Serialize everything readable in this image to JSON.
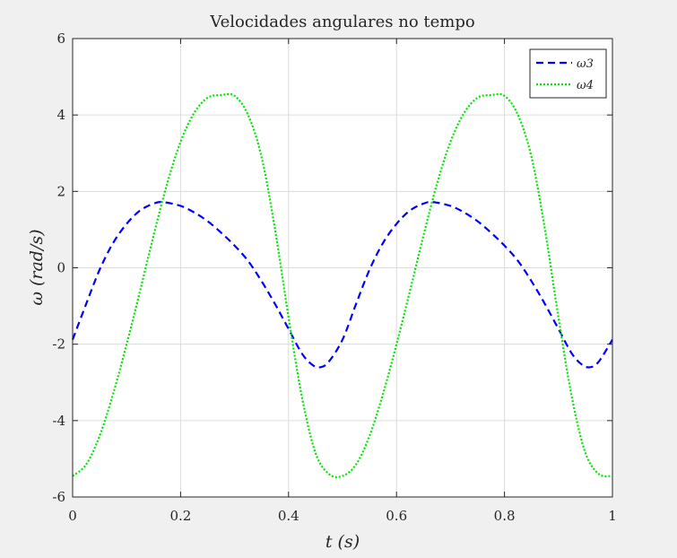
{
  "chart_data": {
    "type": "line",
    "title": "Velocidades angulares no tempo",
    "xlabel": "t (s)",
    "ylabel": "ω (rad/s)",
    "xlim": [
      0,
      1
    ],
    "ylim": [
      -6,
      6
    ],
    "xticks": [
      0,
      0.2,
      0.4,
      0.6,
      0.8,
      1
    ],
    "xtick_labels": [
      "0",
      "0.2",
      "0.4",
      "0.6",
      "0.8",
      "1"
    ],
    "yticks": [
      -6,
      -4,
      -2,
      0,
      2,
      4,
      6
    ],
    "ytick_labels": [
      "-6",
      "-4",
      "-2",
      "0",
      "2",
      "4",
      "6"
    ],
    "grid": true,
    "legend_position": "top-right",
    "series": [
      {
        "name": "ω3",
        "color": "#0000ff",
        "style": "dashed",
        "x": [
          0,
          0.025,
          0.05,
          0.075,
          0.1,
          0.125,
          0.15,
          0.167,
          0.2,
          0.225,
          0.25,
          0.275,
          0.3,
          0.325,
          0.35,
          0.375,
          0.4,
          0.425,
          0.445,
          0.46,
          0.475,
          0.5,
          0.525,
          0.55,
          0.575,
          0.6,
          0.625,
          0.65,
          0.667,
          0.7,
          0.725,
          0.75,
          0.775,
          0.8,
          0.825,
          0.85,
          0.875,
          0.9,
          0.925,
          0.945,
          0.96,
          0.975,
          1
        ],
        "y": [
          -1.88,
          -0.95,
          -0.05,
          0.65,
          1.15,
          1.5,
          1.68,
          1.72,
          1.62,
          1.45,
          1.22,
          0.92,
          0.58,
          0.18,
          -0.35,
          -0.95,
          -1.6,
          -2.25,
          -2.55,
          -2.6,
          -2.45,
          -1.88,
          -0.95,
          -0.05,
          0.65,
          1.15,
          1.5,
          1.68,
          1.72,
          1.62,
          1.45,
          1.22,
          0.92,
          0.58,
          0.18,
          -0.35,
          -0.95,
          -1.6,
          -2.25,
          -2.55,
          -2.6,
          -2.45,
          -1.88
        ]
      },
      {
        "name": "ω4",
        "color": "#00e600",
        "style": "dotted",
        "x": [
          0,
          0.025,
          0.05,
          0.075,
          0.1,
          0.125,
          0.15,
          0.175,
          0.2,
          0.225,
          0.25,
          0.275,
          0.3,
          0.325,
          0.35,
          0.375,
          0.4,
          0.425,
          0.45,
          0.475,
          0.5,
          0.525,
          0.55,
          0.575,
          0.6,
          0.625,
          0.65,
          0.675,
          0.7,
          0.725,
          0.75,
          0.775,
          0.8,
          0.825,
          0.85,
          0.875,
          0.9,
          0.925,
          0.95,
          0.975,
          1
        ],
        "y": [
          -5.45,
          -5.15,
          -4.4,
          -3.3,
          -2.0,
          -0.6,
          0.85,
          2.2,
          3.3,
          4.05,
          4.45,
          4.52,
          4.5,
          4.0,
          2.9,
          1.0,
          -1.3,
          -3.4,
          -4.85,
          -5.4,
          -5.45,
          -5.15,
          -4.4,
          -3.3,
          -2.0,
          -0.6,
          0.85,
          2.2,
          3.3,
          4.05,
          4.45,
          4.52,
          4.5,
          4.0,
          2.9,
          1.0,
          -1.3,
          -3.4,
          -4.85,
          -5.4,
          -5.45
        ]
      }
    ]
  }
}
